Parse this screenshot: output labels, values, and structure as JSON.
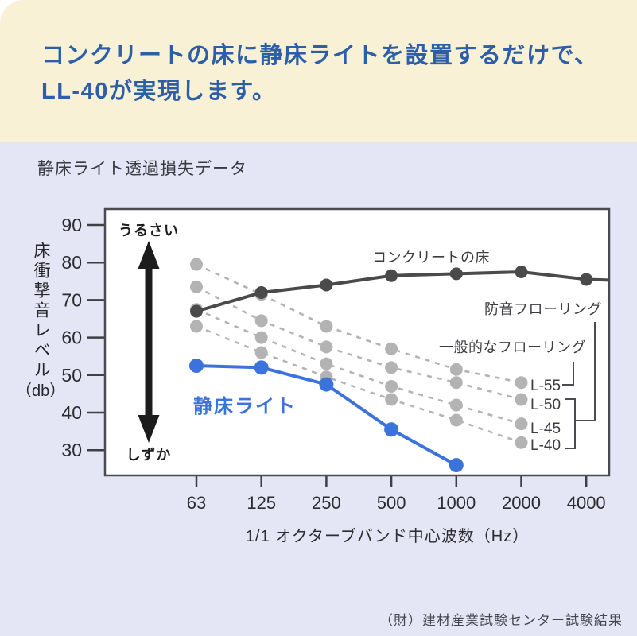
{
  "header": {
    "line1": "コンクリートの床に静床ライトを設置するだけで、",
    "line2": "LL-40が実現します。",
    "text_color": "#2c5fa8",
    "background_color": "#f8f1d6"
  },
  "chart": {
    "title": "静床ライト透過損失データ",
    "y_axis_label": "床衝撃音レベル",
    "y_axis_unit": "（db）",
    "x_axis_label": "1/1 オクターブバンド中心波数（Hz）",
    "source": "（財）建材産業試験センター試験結果",
    "background_color": "#e4e6f5",
    "plot_background": "#ffffff",
    "annotations": {
      "loud": "うるさい",
      "quiet": "しずか",
      "concrete_label": "コンクリートの床",
      "product_label": "静床ライト",
      "soundproof_flooring": "防音フローリング",
      "typical_flooring": "一般的なフローリング",
      "l_labels": [
        "L-55",
        "L-50",
        "L-45",
        "L-40"
      ]
    }
  },
  "chart_data": {
    "type": "line",
    "x_scale": "octave-band",
    "x_categories": [
      "63",
      "125",
      "250",
      "500",
      "1000",
      "2000",
      "4000"
    ],
    "xlabel": "1/1 オクターブバンド中心波数（Hz）",
    "ylabel": "床衝撃音レベル（db）",
    "y_ticks": [
      90,
      80,
      70,
      60,
      50,
      40,
      30
    ],
    "ylim": [
      24,
      94
    ],
    "grid": false,
    "legend_position": "inline-annotations",
    "series": [
      {
        "key": "l-55",
        "name": "L-55",
        "style": "dashed",
        "color": "#b3b3b3",
        "values": [
          79.5,
          71.5,
          63,
          57,
          51.5,
          48,
          null
        ]
      },
      {
        "key": "l-50",
        "name": "L-50",
        "style": "dashed",
        "color": "#b3b3b3",
        "values": [
          73.5,
          64.5,
          57.5,
          52,
          48,
          43.5,
          null
        ]
      },
      {
        "key": "l-45",
        "name": "L-45",
        "style": "dashed",
        "color": "#b3b3b3",
        "values": [
          67.5,
          60,
          53,
          47,
          42,
          37,
          null
        ]
      },
      {
        "key": "l-40",
        "name": "L-40",
        "style": "dashed",
        "color": "#b3b3b3",
        "values": [
          63,
          56,
          49.5,
          43.5,
          38,
          32,
          null
        ]
      },
      {
        "key": "concrete-floor",
        "name": "コンクリートの床",
        "style": "solid",
        "color": "#4a4a4a",
        "values": [
          67,
          72,
          74,
          76.5,
          77,
          77.5,
          75.5
        ],
        "extend_right_db": 75.3
      },
      {
        "key": "shizuka-light",
        "name": "静床ライト",
        "style": "solid",
        "color": "#3b72dc",
        "values": [
          52.5,
          52,
          47.5,
          35.5,
          26,
          null,
          null
        ]
      }
    ],
    "groupings": [
      {
        "label": "一般的なフローリング",
        "members": [
          "L-55"
        ]
      },
      {
        "label": "防音フローリング",
        "members": [
          "L-50",
          "L-45",
          "L-40"
        ]
      }
    ]
  }
}
